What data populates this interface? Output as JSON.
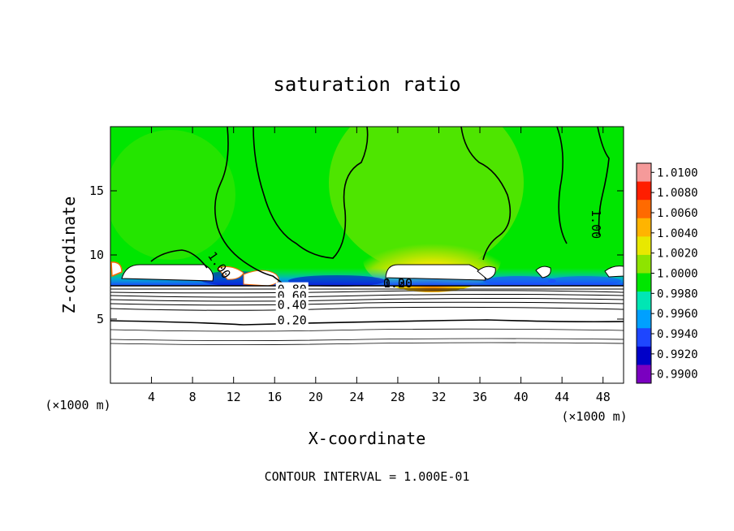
{
  "chart_data": {
    "type": "heatmap",
    "title": "saturation ratio",
    "xlabel": "X-coordinate",
    "ylabel": "Z-coordinate",
    "x_unit": "(×1000 m)",
    "y_unit": "(×1000 m)",
    "xlim": [
      0,
      50
    ],
    "ylim": [
      0,
      20
    ],
    "x_ticks": [
      4,
      8,
      12,
      16,
      20,
      24,
      28,
      32,
      36,
      40,
      44,
      48
    ],
    "y_ticks": [
      5,
      10,
      15
    ],
    "footer": "CONTOUR INTERVAL = 1.000E-01",
    "colorbar": {
      "levels": [
        "1.0100",
        "1.0080",
        "1.0060",
        "1.0040",
        "1.0020",
        "1.0000",
        "0.9980",
        "0.9960",
        "0.9940",
        "0.9920",
        "0.9900"
      ],
      "colors": [
        "#f59a9a",
        "#ff1e00",
        "#ff6a00",
        "#ffb400",
        "#e8e800",
        "#8ee400",
        "#00e600",
        "#00e6b4",
        "#00a0ff",
        "#1e46ff",
        "#0000c8",
        "#7a00c0"
      ]
    },
    "contour_labels": [
      {
        "text": "1.00",
        "x": 10.6,
        "z": 9.2,
        "angle": 55
      },
      {
        "text": "1.00",
        "x": 47.3,
        "z": 12.4,
        "angle": 90
      },
      {
        "text": "0.80",
        "x": 17.7,
        "z": 7.3,
        "angle": 0
      },
      {
        "text": "0.60",
        "x": 17.7,
        "z": 6.8,
        "angle": 0
      },
      {
        "text": "0.40",
        "x": 17.7,
        "z": 6.1,
        "angle": 0
      },
      {
        "text": "0.20",
        "x": 17.7,
        "z": 4.9,
        "angle": 0
      },
      {
        "text": "0.20",
        "x": 28.0,
        "z": 7.8,
        "angle": 0
      },
      {
        "text": "1.00",
        "x": 28.0,
        "z": 7.8,
        "angle": 0
      }
    ]
  }
}
